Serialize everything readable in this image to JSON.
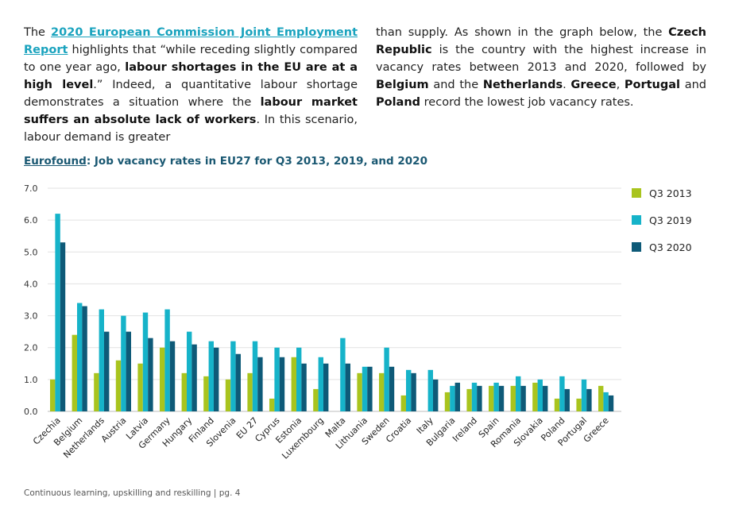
{
  "text": {
    "left": {
      "p1": "The ",
      "link": "2020 European Commission Joint Employment Report",
      "p2": " highlights that “while receding slightly compared to one year ago, ",
      "b1": "labour shortages in the EU are at a high level",
      "p3": ".” Indeed, a quantitative labour shortage demonstrates a situation where the ",
      "b2": "labour market suffers an absolute lack of workers",
      "p4": ". In this scenario, labour demand is greater"
    },
    "right": {
      "p1": "than supply. As shown in the graph below, the ",
      "b1": "Czech Republic",
      "p2": " is the country with the highest increase in vacancy rates between 2013 and 2020, followed by ",
      "b2": "Belgium",
      "p3": " and the ",
      "b3": "Netherlands",
      "p4": ". ",
      "b4": "Greece",
      "p5": ", ",
      "b5": "Portugal",
      "p6": " and ",
      "b6": "Poland",
      "p7": " record the lowest job vacancy rates."
    }
  },
  "chart_title": {
    "source": "Eurofound",
    "rest": ": Job vacancy rates in EU27 for Q3 2013, 2019, and 2020"
  },
  "footer": "Continuous learning, upskilling and reskilling | pg. 4",
  "chart_data": {
    "type": "bar",
    "title": "Job vacancy rates in EU27 for Q3 2013, 2019, and 2020",
    "ylim": [
      0,
      7
    ],
    "yticks": [
      "0.0",
      "1.0",
      "2.0",
      "3.0",
      "4.0",
      "5.0",
      "6.0",
      "7.0"
    ],
    "grid": true,
    "legend_position": "right",
    "categories": [
      "Czechia",
      "Belgium",
      "Netherlands",
      "Austria",
      "Latvia",
      "Germany",
      "Hungary",
      "Finland",
      "Slovenia",
      "EU 27",
      "Cyprus",
      "Estonia",
      "Luxembourg",
      "Malta",
      "Lithuania",
      "Sweden",
      "Croatia",
      "Italy",
      "Bulgaria",
      "Ireland",
      "Spain",
      "Romania",
      "Slovakia",
      "Poland",
      "Portugal",
      "Greece"
    ],
    "series": [
      {
        "name": "Q3 2013",
        "color": "#a9c41e",
        "values": [
          1.0,
          2.4,
          1.2,
          1.6,
          1.5,
          2.0,
          1.2,
          1.1,
          1.0,
          1.2,
          0.4,
          1.7,
          0.7,
          0,
          1.2,
          1.2,
          0.5,
          0,
          0.6,
          0.7,
          0.8,
          0.8,
          0.9,
          0.4,
          0.4,
          0.8
        ]
      },
      {
        "name": "Q3 2019",
        "color": "#16b3c9",
        "values": [
          6.2,
          3.4,
          3.2,
          3.0,
          3.1,
          3.2,
          2.5,
          2.2,
          2.2,
          2.2,
          2.0,
          2.0,
          1.7,
          2.3,
          1.4,
          2.0,
          1.3,
          1.3,
          0.8,
          0.9,
          0.9,
          1.1,
          1.0,
          1.1,
          1.0,
          0.6
        ]
      },
      {
        "name": "Q3 2020",
        "color": "#0e5a78",
        "values": [
          5.3,
          3.3,
          2.5,
          2.5,
          2.3,
          2.2,
          2.1,
          2.0,
          1.8,
          1.7,
          1.7,
          1.5,
          1.5,
          1.5,
          1.4,
          1.4,
          1.2,
          1.0,
          0.9,
          0.8,
          0.8,
          0.8,
          0.8,
          0.7,
          0.7,
          0.5
        ]
      }
    ]
  }
}
